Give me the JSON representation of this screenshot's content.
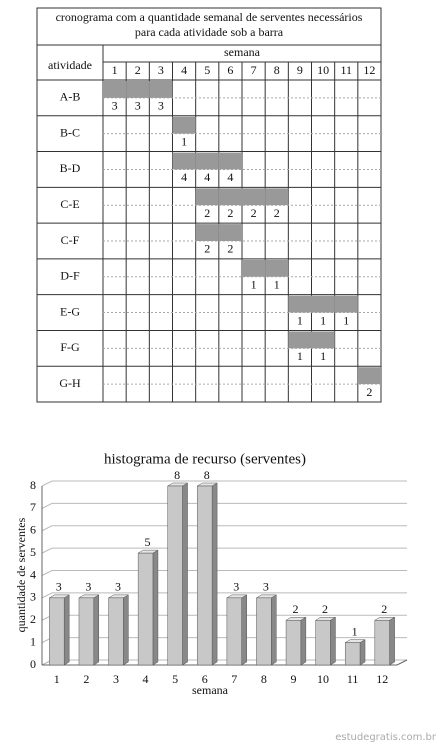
{
  "schedule": {
    "title": "cronograma com a quantidade semanal de serventes necessários",
    "subtitle": "para cada atividade sob a barra",
    "row_header": "atividade",
    "column_header": "semana",
    "weeks": [
      1,
      2,
      3,
      4,
      5,
      6,
      7,
      8,
      9,
      10,
      11,
      12
    ],
    "rows": [
      {
        "label": "A-B",
        "cells": [
          3,
          3,
          3,
          null,
          null,
          null,
          null,
          null,
          null,
          null,
          null,
          null
        ]
      },
      {
        "label": "B-C",
        "cells": [
          null,
          null,
          null,
          1,
          null,
          null,
          null,
          null,
          null,
          null,
          null,
          null
        ]
      },
      {
        "label": "B-D",
        "cells": [
          null,
          null,
          null,
          4,
          4,
          4,
          null,
          null,
          null,
          null,
          null,
          null
        ]
      },
      {
        "label": "C-E",
        "cells": [
          null,
          null,
          null,
          null,
          2,
          2,
          2,
          2,
          null,
          null,
          null,
          null
        ]
      },
      {
        "label": "C-F",
        "cells": [
          null,
          null,
          null,
          null,
          2,
          2,
          null,
          null,
          null,
          null,
          null,
          null
        ]
      },
      {
        "label": "D-F",
        "cells": [
          null,
          null,
          null,
          null,
          null,
          null,
          1,
          1,
          null,
          null,
          null,
          null
        ]
      },
      {
        "label": "E-G",
        "cells": [
          null,
          null,
          null,
          null,
          null,
          null,
          null,
          null,
          1,
          1,
          1,
          null
        ]
      },
      {
        "label": "F-G",
        "cells": [
          null,
          null,
          null,
          null,
          null,
          null,
          null,
          null,
          1,
          1,
          null,
          null
        ]
      },
      {
        "label": "G-H",
        "cells": [
          null,
          null,
          null,
          null,
          null,
          null,
          null,
          null,
          null,
          null,
          null,
          2
        ]
      }
    ]
  },
  "chart_data": {
    "type": "bar",
    "title": "histograma de recurso (serventes)",
    "x_label": "semana",
    "y_label": "quantidade de serventes",
    "categories": [
      "1",
      "2",
      "3",
      "4",
      "5",
      "6",
      "7",
      "8",
      "9",
      "10",
      "11",
      "12"
    ],
    "values": [
      3,
      3,
      3,
      5,
      8,
      8,
      3,
      3,
      2,
      2,
      1,
      2
    ],
    "color": "#c8c8c8",
    "ylim": [
      0,
      8
    ],
    "yticks": [
      0,
      1,
      2,
      3,
      4,
      5,
      6,
      7,
      8
    ],
    "grid": true
  },
  "footer": "estudegratis.com.br"
}
